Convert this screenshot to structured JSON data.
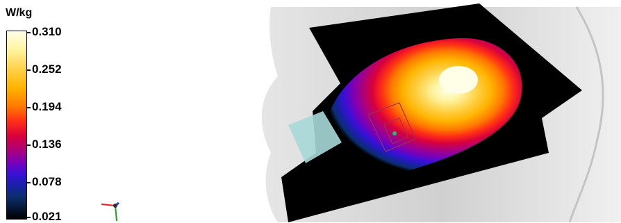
{
  "legend": {
    "unit": "W/kg",
    "ticks": [
      "0.310",
      "0.252",
      "0.194",
      "0.136",
      "0.078",
      "0.021"
    ],
    "scale_colors": [
      "#ffffe8",
      "#ffd24a",
      "#ff7a00",
      "#d8003c",
      "#7a00b8",
      "#1a20a8",
      "#000000"
    ]
  },
  "axes_icon": "xyz-axes-icon",
  "view": {
    "head_color": "#d8d8d8",
    "plane_color": "#000000",
    "marker_color": "#7fd0d0",
    "probe_color": "#a03050",
    "point_color": "#20c060"
  }
}
